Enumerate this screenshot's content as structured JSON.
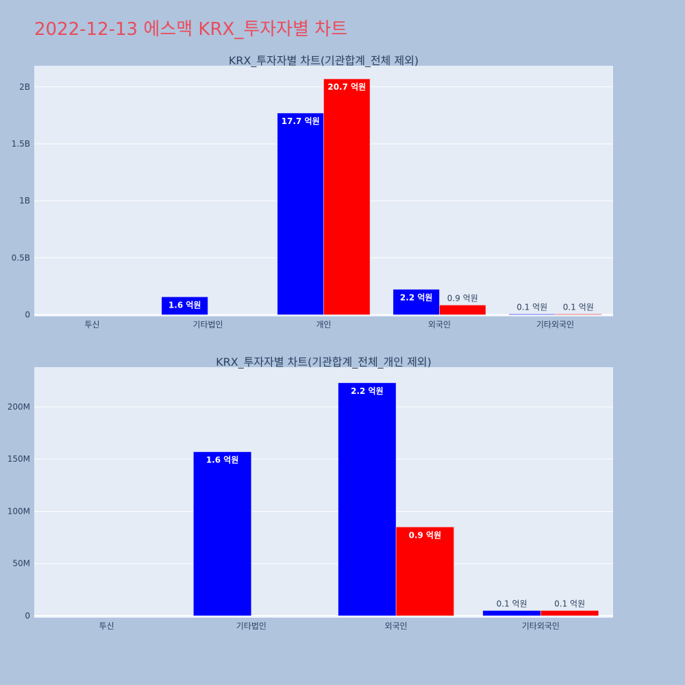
{
  "page_title": "2022-12-13 에스맥 KRX_투자자별 차트",
  "colors": {
    "buy": "#0000ff",
    "sell": "#ff0000",
    "plot_bg": "#e5ecf6",
    "page_bg": "#b0c4de",
    "title": "#ea4c5b"
  },
  "chart_data": [
    {
      "type": "bar",
      "title": "KRX_투자자별 차트(기관합계_전체 제외)",
      "categories": [
        "투신",
        "기타법인",
        "개인",
        "외국인",
        "기타외국인"
      ],
      "series": [
        {
          "color": "#0000ff",
          "values": [
            0,
            157000000,
            1770000000,
            223000000,
            5000000
          ],
          "labels": [
            "",
            "1.6 억원",
            "17.7 억원",
            "2.2 억원",
            "0.1 억원"
          ]
        },
        {
          "color": "#ff0000",
          "values": [
            0,
            0,
            2070000000,
            85000000,
            5000000
          ],
          "labels": [
            "",
            "",
            "20.7 억원",
            "0.9 억원",
            "0.1 억원"
          ]
        }
      ],
      "ylim": [
        -15000000,
        2185000000
      ],
      "yticks": [
        0,
        500000000,
        1000000000,
        1500000000,
        2000000000
      ],
      "ytick_labels": [
        "0",
        "0.5B",
        "1B",
        "1.5B",
        "2B"
      ],
      "grid": true,
      "legend": "none"
    },
    {
      "type": "bar",
      "title": "KRX_투자자별 차트(기관합계_전체_개인 제외)",
      "categories": [
        "투신",
        "기타법인",
        "외국인",
        "기타외국인"
      ],
      "series": [
        {
          "color": "#0000ff",
          "values": [
            0,
            157000000,
            223000000,
            5000000
          ],
          "labels": [
            "",
            "1.6 억원",
            "2.2 억원",
            "0.1 억원"
          ]
        },
        {
          "color": "#ff0000",
          "values": [
            0,
            0,
            85000000,
            5000000
          ],
          "labels": [
            "",
            "",
            "0.9 억원",
            "0.1 억원"
          ]
        }
      ],
      "ylim": [
        -2000000,
        238000000
      ],
      "yticks": [
        0,
        50000000,
        100000000,
        150000000,
        200000000
      ],
      "ytick_labels": [
        "0",
        "50M",
        "100M",
        "150M",
        "200M"
      ],
      "grid": true,
      "legend": "none"
    }
  ]
}
